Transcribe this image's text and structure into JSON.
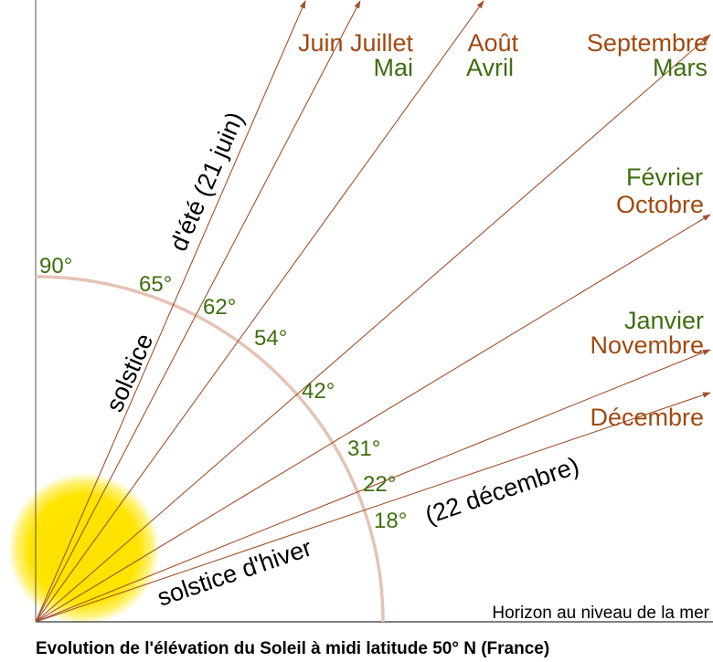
{
  "title": "Evolution de l'élévation du Soleil à midi latitude 50° N (France)",
  "horizon_label": "Horizon au niveau de la mer",
  "angles": [
    "90°",
    "65°",
    "62°",
    "54°",
    "42°",
    "31°",
    "22°",
    "18°"
  ],
  "months": {
    "juin_juillet": "Juin Juillet",
    "mai": "Mai",
    "aout": "Août",
    "avril": "Avril",
    "septembre": "Septembre",
    "mars": "Mars",
    "fevrier": "Février",
    "octobre": "Octobre",
    "janvier": "Janvier",
    "novembre": "Novembre",
    "decembre": "Décembre"
  },
  "solstices": {
    "summer_a": "solstice",
    "summer_b": "d'été (21 juin)",
    "winter_a": "solstice d'hiver",
    "winter_b": "(22 décembre)"
  },
  "colors": {
    "ray": "#a0522d",
    "arc": "#e4c3b6",
    "sun_core": "#ffe200",
    "sun_edge": "#fff9c0",
    "month_brown": "#a04a12",
    "month_green": "#3f6e10"
  }
}
